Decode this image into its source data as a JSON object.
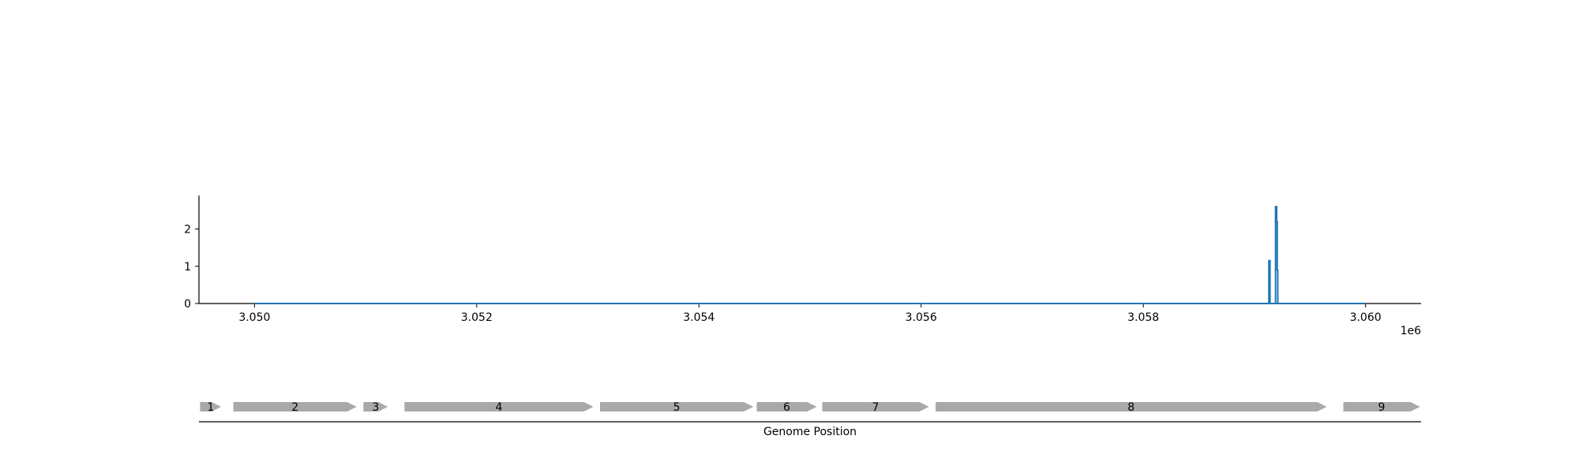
{
  "chart_data": [
    {
      "type": "line",
      "title": "",
      "xlabel": "",
      "ylabel": "",
      "xlim": [
        3049500,
        3060500
      ],
      "ylim": [
        0,
        2.9
      ],
      "x_offset_label": "1e6",
      "x_ticks": [
        3050000,
        3052000,
        3054000,
        3056000,
        3058000,
        3060000
      ],
      "x_tick_labels": [
        "3.050",
        "3.052",
        "3.054",
        "3.056",
        "3.058",
        "3.060"
      ],
      "y_ticks": [
        0,
        1,
        2
      ],
      "y_tick_labels": [
        "0",
        "1",
        "2"
      ],
      "grid": false,
      "color": "#1f77b4",
      "series": [
        {
          "x": [
            3050000,
            3059130,
            3059130,
            3059140,
            3059140,
            3059190,
            3059190,
            3059200,
            3059200,
            3059205,
            3059205,
            3059210,
            3059210,
            3060000
          ],
          "values": [
            0,
            0,
            1.15,
            1.15,
            0,
            0,
            2.6,
            2.6,
            2.2,
            2.2,
            0.9,
            0.9,
            0,
            0
          ]
        }
      ]
    },
    {
      "type": "gene-map",
      "xlabel": "Genome Position",
      "xlim": [
        3049500,
        3060500
      ],
      "color": "#a9a9a9",
      "genes": [
        {
          "label": "1",
          "start": 3049510,
          "end": 3049700
        },
        {
          "label": "2",
          "start": 3049810,
          "end": 3050920
        },
        {
          "label": "3",
          "start": 3050980,
          "end": 3051200
        },
        {
          "label": "4",
          "start": 3051350,
          "end": 3053050
        },
        {
          "label": "5",
          "start": 3053110,
          "end": 3054490
        },
        {
          "label": "6",
          "start": 3054520,
          "end": 3055060
        },
        {
          "label": "7",
          "start": 3055110,
          "end": 3056070
        },
        {
          "label": "8",
          "start": 3056130,
          "end": 3059650
        },
        {
          "label": "9",
          "start": 3059800,
          "end": 3060490
        }
      ]
    }
  ]
}
